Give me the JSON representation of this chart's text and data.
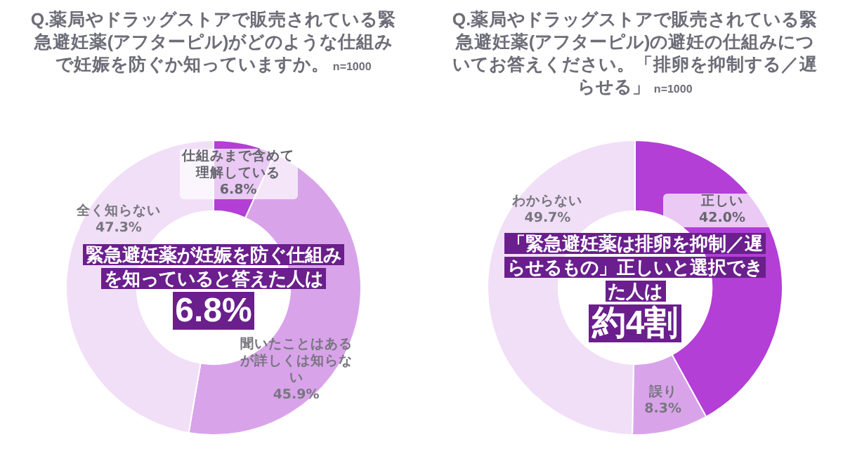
{
  "chart_data": [
    {
      "type": "donut",
      "title": "Q.薬局やドラッグストアで販売されている緊急避妊薬(アフターピル)がどのような仕組みで妊娠を防ぐか知っていますか。",
      "subtitle": "n=1000",
      "categories": [
        "仕組みまで含めて理解している",
        "聞いたことはあるが詳しくは知らない",
        "全く知らない"
      ],
      "values": [
        6.8,
        45.9,
        47.3
      ],
      "value_labels": [
        "6.8%",
        "45.9%",
        "47.3%"
      ],
      "colors": [
        "#b33fd6",
        "#d9a3ea",
        "#f1def7"
      ],
      "annotations": [
        "緊急避妊薬が妊娠を防ぐ仕組みを知っていると答えた人は",
        "6.8%"
      ]
    },
    {
      "type": "donut",
      "title": "Q.薬局やドラッグストアで販売されている緊急避妊薬(アフターピル)の避妊の仕組みについてお答えください。「排卵を抑制する／遅らせる」",
      "subtitle": "n=1000",
      "categories": [
        "正しい",
        "誤り",
        "わからない"
      ],
      "values": [
        42.0,
        8.3,
        49.7
      ],
      "value_labels": [
        "42.0%",
        "8.3%",
        "49.7%"
      ],
      "colors": [
        "#b33fd6",
        "#d9a3ea",
        "#f1def7"
      ],
      "annotations": [
        "「緊急避妊薬は排卵を抑制／遅らせるもの」正しいと選択できた人は",
        "約4割"
      ]
    }
  ]
}
